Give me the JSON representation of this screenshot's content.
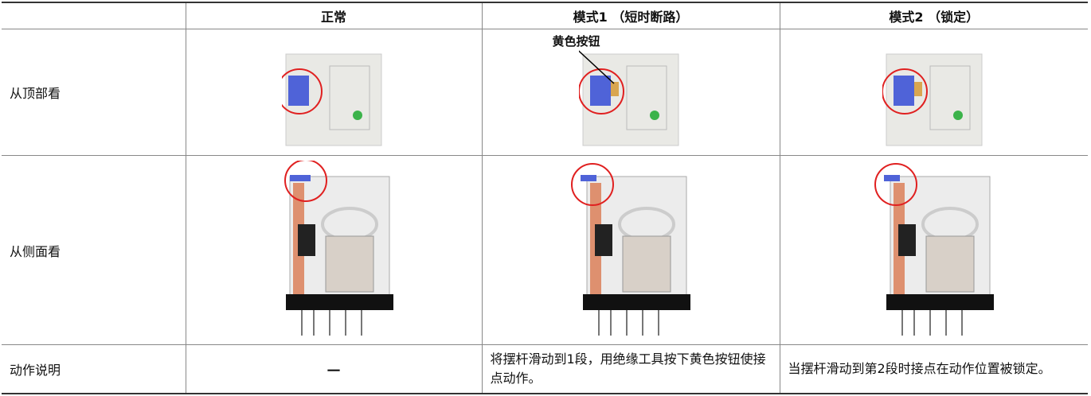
{
  "header": {
    "columns": [
      "正常",
      "模式1 （短时断路）",
      "模式2 （锁定）"
    ]
  },
  "rows": [
    {
      "label": "从顶部看"
    },
    {
      "label": "从侧面看"
    },
    {
      "label": "动作说明",
      "cells": [
        "－",
        "将摆杆滑动到1段，用绝缘工具按下黄色按钮使接点动作。",
        "当摆杆滑动到第2段时接点在动作位置被锁定。"
      ]
    }
  ],
  "annotation": "黄色按钮"
}
